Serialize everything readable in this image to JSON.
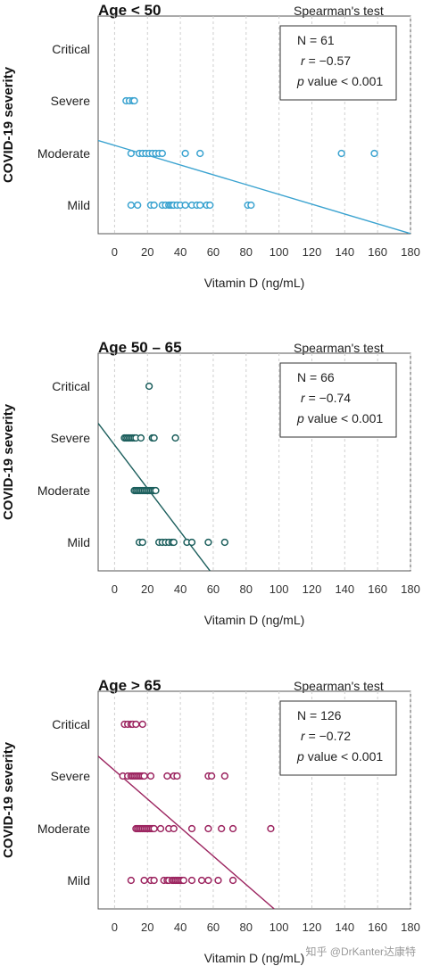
{
  "ylabel": "COVID-19 severity",
  "test_label": "Spearman's test",
  "watermark": "知乎 @DrKanter达康特",
  "chart_data": [
    {
      "type": "scatter",
      "title": "Age < 50",
      "color": "#3ba3d0",
      "xlabel": "Vitamin D (ng/mL)",
      "xlim": [
        -10,
        180
      ],
      "xticks": [
        0,
        20,
        40,
        60,
        80,
        100,
        120,
        140,
        160,
        180
      ],
      "categories": [
        "Critical",
        "Severe",
        "Moderate",
        "Mild"
      ],
      "stats": {
        "n": "N = 61",
        "r": "= −0.57",
        "p": "value < 0.001"
      },
      "points": {
        "Critical": [],
        "Severe": [
          7,
          9,
          11,
          12
        ],
        "Moderate": [
          10,
          15,
          17,
          19,
          21,
          23,
          25,
          27,
          29,
          43,
          52,
          138,
          158
        ],
        "Mild": [
          10,
          14,
          22,
          24,
          29,
          31,
          33,
          34,
          35,
          36,
          38,
          40,
          43,
          47,
          50,
          52,
          56,
          58,
          81,
          83
        ]
      },
      "fit_line": {
        "x": [
          -10,
          180
        ],
        "y": [
          1.25,
          -0.55
        ]
      }
    },
    {
      "type": "scatter",
      "title": "Age 50 – 65",
      "color": "#1b5e5c",
      "xlabel": "Vitamin D (ng/mL)",
      "xlim": [
        -10,
        180
      ],
      "xticks": [
        0,
        20,
        40,
        60,
        80,
        100,
        120,
        140,
        160,
        180
      ],
      "categories": [
        "Critical",
        "Severe",
        "Moderate",
        "Mild"
      ],
      "stats": {
        "n": "N = 66",
        "r": "= −0.74",
        "p": "value < 0.001"
      },
      "points": {
        "Critical": [
          21
        ],
        "Severe": [
          6,
          7,
          8,
          9,
          10,
          11,
          12,
          13,
          16,
          23,
          24,
          37
        ],
        "Moderate": [
          12,
          13,
          14,
          15,
          16,
          17,
          18,
          19,
          20,
          21,
          22,
          23,
          24,
          25
        ],
        "Mild": [
          15,
          17,
          27,
          29,
          31,
          33,
          35,
          36,
          44,
          47,
          57,
          67
        ]
      },
      "fit_line": {
        "x": [
          -10,
          58
        ],
        "y": [
          2.3,
          -0.55
        ]
      }
    },
    {
      "type": "scatter",
      "title": "Age > 65",
      "color": "#9c2560",
      "xlabel": "Vitamin D (ng/mL)",
      "xlim": [
        -10,
        180
      ],
      "xticks": [
        0,
        20,
        40,
        60,
        80,
        100,
        120,
        140,
        160,
        180
      ],
      "categories": [
        "Critical",
        "Severe",
        "Moderate",
        "Mild"
      ],
      "stats": {
        "n": "N = 126",
        "r": "= −0.72",
        "p": "value < 0.001"
      },
      "points": {
        "Critical": [
          6,
          8,
          10,
          11,
          13,
          17
        ],
        "Severe": [
          5,
          8,
          10,
          11,
          12,
          13,
          14,
          15,
          16,
          17,
          18,
          22,
          32,
          36,
          38,
          57,
          59,
          67
        ],
        "Moderate": [
          13,
          14,
          15,
          16,
          17,
          18,
          19,
          20,
          21,
          22,
          23,
          24,
          28,
          33,
          36,
          47,
          57,
          65,
          72,
          95
        ],
        "Mild": [
          10,
          18,
          22,
          24,
          30,
          32,
          33,
          35,
          36,
          37,
          38,
          39,
          40,
          41,
          42,
          47,
          53,
          57,
          63,
          72
        ]
      },
      "fit_line": {
        "x": [
          -10,
          97
        ],
        "y": [
          2.4,
          -0.55
        ]
      }
    }
  ]
}
